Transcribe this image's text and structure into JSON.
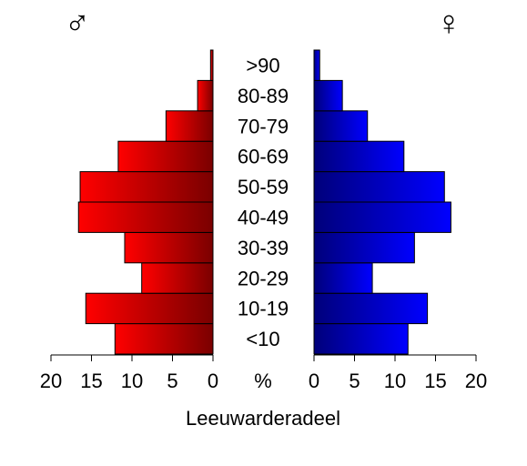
{
  "chart_data": {
    "type": "pyramid",
    "title": "Leeuwarderadeel",
    "axis_label": "%",
    "categories": [
      "<10",
      "10-19",
      "20-29",
      "30-39",
      "40-49",
      "50-59",
      "60-69",
      "70-79",
      "80-89",
      ">90"
    ],
    "series": [
      {
        "name": "♂",
        "gradient": [
          "#ff0000",
          "#7a0000"
        ],
        "values": [
          12.1,
          15.7,
          8.8,
          10.9,
          16.6,
          16.4,
          11.7,
          5.8,
          1.9,
          0.3
        ]
      },
      {
        "name": "♀",
        "gradient": [
          "#00007a",
          "#0000ff"
        ],
        "values": [
          11.6,
          14.0,
          7.2,
          12.4,
          16.9,
          16.1,
          11.1,
          6.6,
          3.5,
          0.7
        ]
      }
    ],
    "xlim": [
      0,
      20
    ],
    "xticks": [
      0,
      5,
      10,
      15,
      20
    ]
  }
}
